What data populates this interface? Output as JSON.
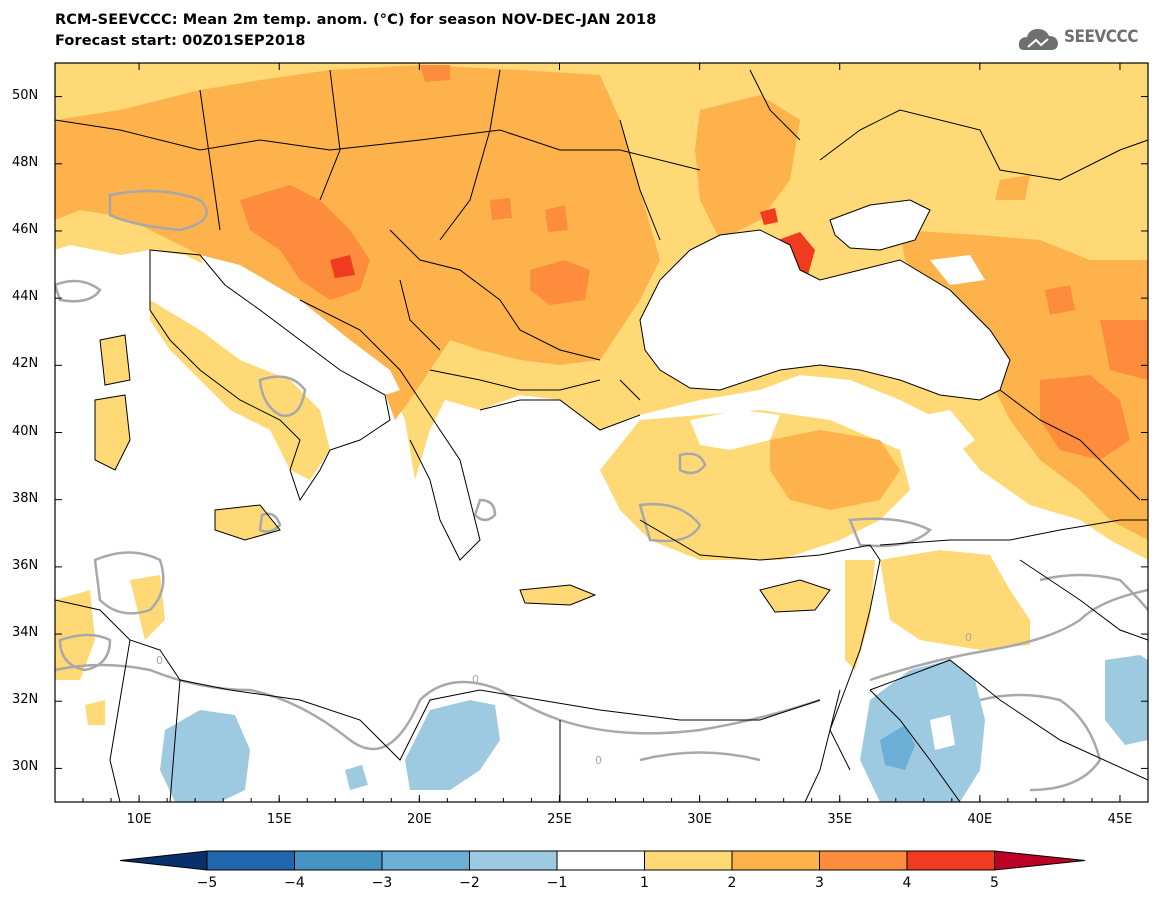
{
  "header": {
    "title_line1": "RCM-SEEVCCC: Mean 2m temp. anom. (°C) for season NOV-DEC-JAN 2018",
    "title_line2": "Forecast start: 00Z01SEP2018"
  },
  "logo": {
    "text": "SEEVCCC",
    "icon": "cloud-icon",
    "color": "#6f6f6f"
  },
  "map": {
    "lon_range": [
      7,
      46
    ],
    "lat_range": [
      29,
      51
    ],
    "lat_ticks": [
      "50N",
      "48N",
      "46N",
      "44N",
      "42N",
      "40N",
      "38N",
      "36N",
      "34N",
      "32N",
      "30N"
    ],
    "lon_ticks": [
      "10E",
      "15E",
      "20E",
      "25E",
      "30E",
      "35E",
      "40E",
      "45E"
    ],
    "contour_labels": [
      "0",
      "0",
      "0",
      "0"
    ]
  },
  "colorbar": {
    "ticks": [
      "−5",
      "−4",
      "−3",
      "−2",
      "−1",
      "1",
      "2",
      "3",
      "4",
      "5"
    ],
    "colors": [
      "#08306b",
      "#2166ac",
      "#4393c3",
      "#6baed6",
      "#9ecae1",
      "#ffffff",
      "#fed976",
      "#feb24c",
      "#fd8d3c",
      "#f03b20",
      "#bd0026"
    ]
  }
}
